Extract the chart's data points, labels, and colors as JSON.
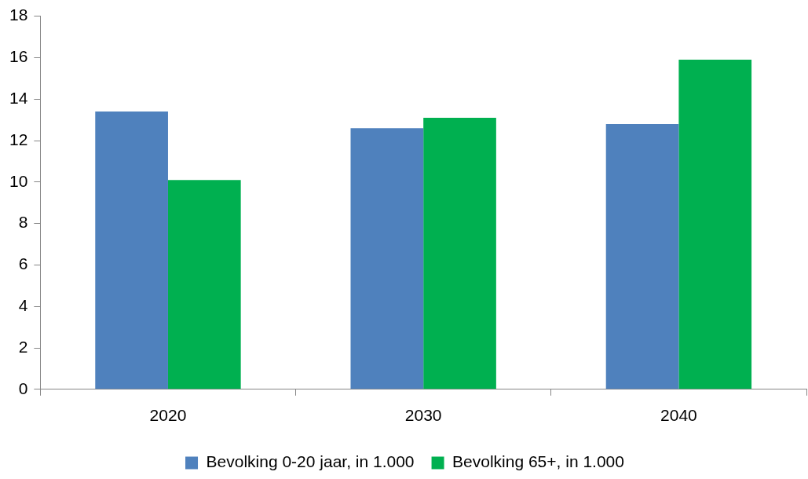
{
  "chart_data": {
    "type": "bar",
    "categories": [
      "2020",
      "2030",
      "2040"
    ],
    "series": [
      {
        "name": "Bevolking 0-20 jaar, in 1.000",
        "color": "#4f81bd",
        "values": [
          13.4,
          12.6,
          12.8
        ]
      },
      {
        "name": "Bevolking 65+, in 1.000",
        "color": "#00b050",
        "values": [
          10.1,
          13.1,
          15.9
        ]
      }
    ],
    "ylim": [
      0,
      18
    ],
    "yticks": [
      0,
      2,
      4,
      6,
      8,
      10,
      12,
      14,
      16,
      18
    ],
    "grid": false,
    "legend": "bottom"
  }
}
